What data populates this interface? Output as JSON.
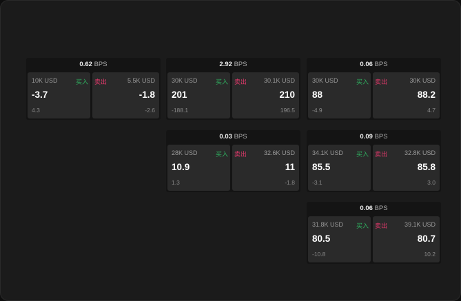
{
  "buy_label": "买入",
  "sell_label": "卖出",
  "bps_unit": "BPS",
  "colors": {
    "buy": "#2fae5f",
    "sell": "#e0386a"
  },
  "cards": [
    {
      "spread": "0.62",
      "buy": {
        "size": "10K USD",
        "price": "-3.7",
        "change": "4.3"
      },
      "sell": {
        "size": "5.5K USD",
        "price": "-1.8",
        "change": "-2.6"
      }
    },
    {
      "spread": "2.92",
      "buy": {
        "size": "30K USD",
        "price": "201",
        "change": "-188.1"
      },
      "sell": {
        "size": "30.1K USD",
        "price": "210",
        "change": "196.5"
      }
    },
    {
      "spread": "0.06",
      "buy": {
        "size": "30K USD",
        "price": "88",
        "change": "-4.9"
      },
      "sell": {
        "size": "30K USD",
        "price": "88.2",
        "change": "4.7"
      }
    },
    {
      "spread": "0.03",
      "buy": {
        "size": "28K USD",
        "price": "10.9",
        "change": "1.3"
      },
      "sell": {
        "size": "32.6K USD",
        "price": "11",
        "change": "-1.8"
      }
    },
    {
      "spread": "0.09",
      "buy": {
        "size": "34.1K USD",
        "price": "85.5",
        "change": "-3.1"
      },
      "sell": {
        "size": "32.8K USD",
        "price": "85.8",
        "change": "3.0"
      }
    },
    {
      "spread": "0.06",
      "buy": {
        "size": "31.8K USD",
        "price": "80.5",
        "change": "-10.8"
      },
      "sell": {
        "size": "39.1K USD",
        "price": "80.7",
        "change": "10.2"
      }
    }
  ]
}
